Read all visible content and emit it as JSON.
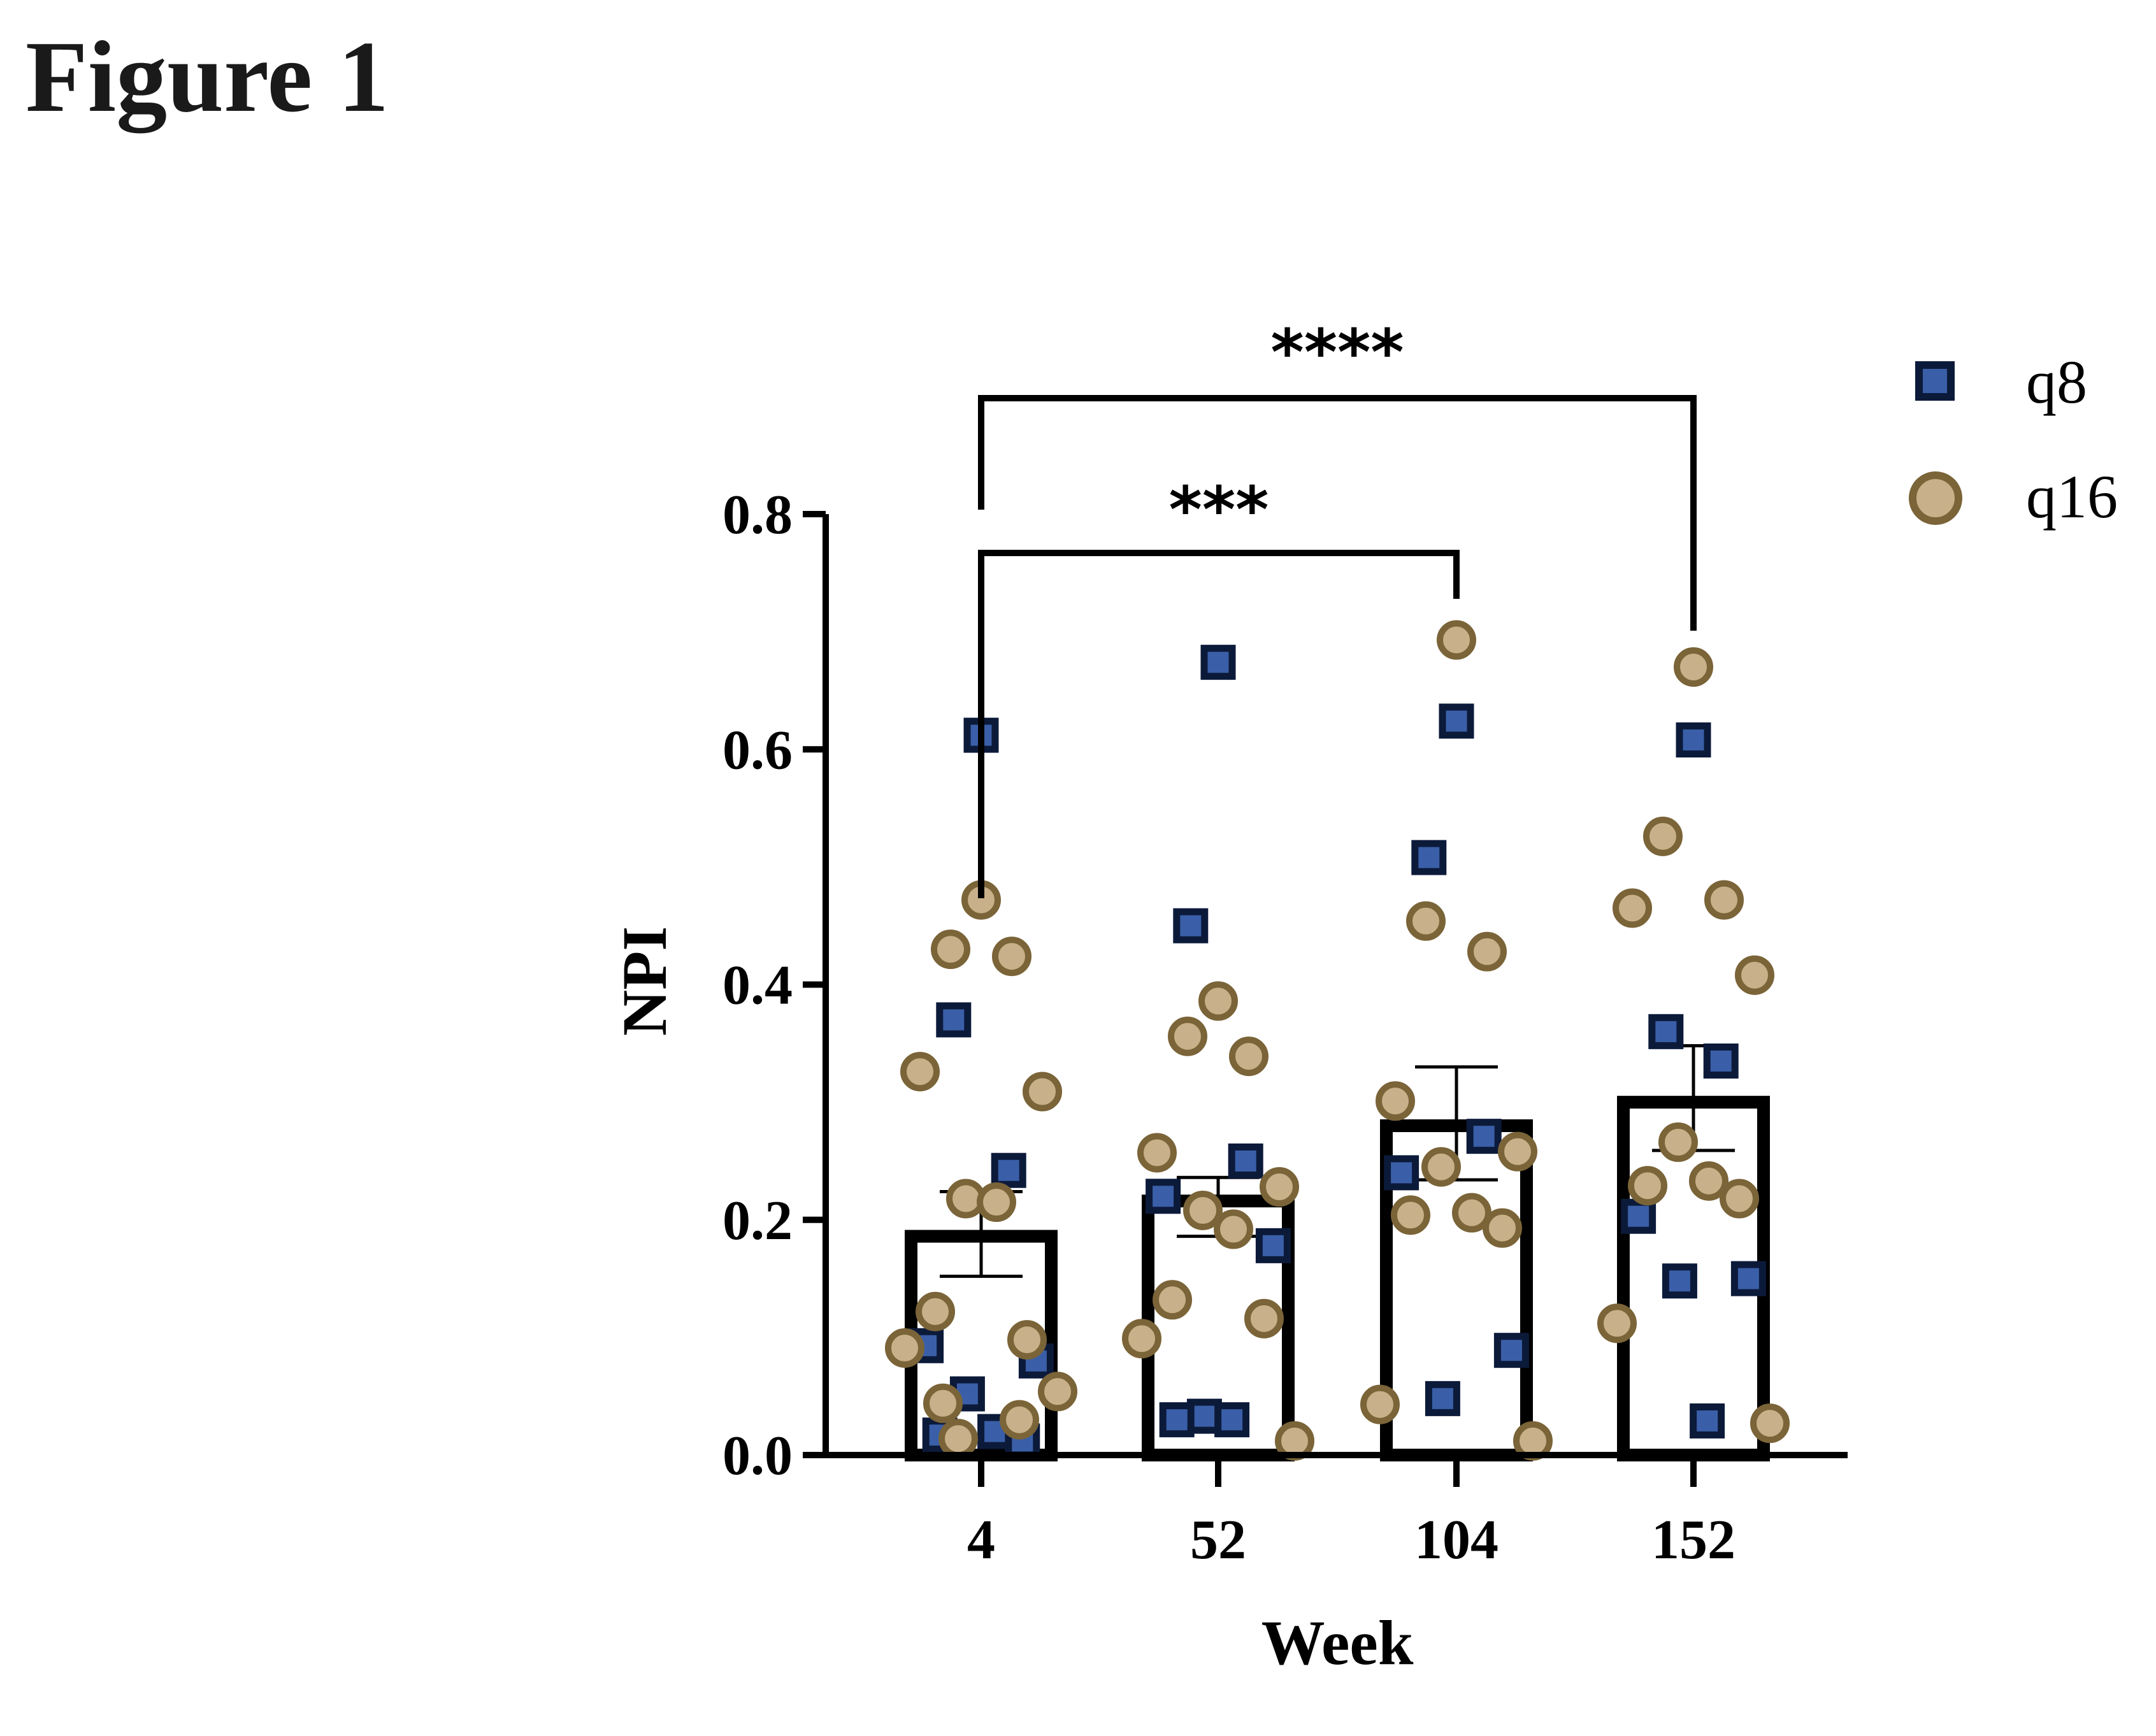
{
  "figure": {
    "heading": "Figure 1"
  },
  "colors": {
    "q8_fill": "#3a5fa8",
    "q8_stroke": "#0c1a3a",
    "q16_fill": "#c8b08a",
    "q16_stroke": "#7a6438",
    "axis": "#000000"
  },
  "chart_data": {
    "type": "bar",
    "title": "",
    "xlabel": "Week",
    "ylabel": "NPI",
    "categories": [
      "4",
      "52",
      "104",
      "152"
    ],
    "bar_means": [
      0.186,
      0.216,
      0.28,
      0.3
    ],
    "error_sem": [
      [
        0.152,
        0.224
      ],
      [
        0.186,
        0.236
      ],
      [
        0.234,
        0.33
      ],
      [
        0.259,
        0.348
      ]
    ],
    "ylim": [
      0,
      0.8
    ],
    "yticks": [
      "0.0",
      "0.2",
      "0.4",
      "0.6",
      "0.8"
    ],
    "grid": false,
    "legend_position": "top-right",
    "series": [
      {
        "name": "q8",
        "marker": "square",
        "points": [
          {
            "x": "4",
            "y": 0.612
          },
          {
            "x": "4",
            "y": 0.37
          },
          {
            "x": "4",
            "y": 0.242
          },
          {
            "x": "4",
            "y": 0.093
          },
          {
            "x": "4",
            "y": 0.08
          },
          {
            "x": "4",
            "y": 0.052
          },
          {
            "x": "4",
            "y": 0.02
          },
          {
            "x": "4",
            "y": 0.017
          },
          {
            "x": "4",
            "y": 0.012
          },
          {
            "x": "52",
            "y": 0.674
          },
          {
            "x": "52",
            "y": 0.45
          },
          {
            "x": "52",
            "y": 0.25
          },
          {
            "x": "52",
            "y": 0.22
          },
          {
            "x": "52",
            "y": 0.178
          },
          {
            "x": "52",
            "y": 0.033
          },
          {
            "x": "52",
            "y": 0.03
          },
          {
            "x": "52",
            "y": 0.03
          },
          {
            "x": "104",
            "y": 0.624
          },
          {
            "x": "104",
            "y": 0.508
          },
          {
            "x": "104",
            "y": 0.271
          },
          {
            "x": "104",
            "y": 0.24
          },
          {
            "x": "104",
            "y": 0.089
          },
          {
            "x": "104",
            "y": 0.048
          },
          {
            "x": "152",
            "y": 0.608
          },
          {
            "x": "152",
            "y": 0.36
          },
          {
            "x": "152",
            "y": 0.335
          },
          {
            "x": "152",
            "y": 0.203
          },
          {
            "x": "152",
            "y": 0.15
          },
          {
            "x": "152",
            "y": 0.148
          },
          {
            "x": "152",
            "y": 0.029
          }
        ]
      },
      {
        "name": "q16",
        "marker": "circle",
        "points": [
          {
            "x": "4",
            "y": 0.472
          },
          {
            "x": "4",
            "y": 0.43
          },
          {
            "x": "4",
            "y": 0.424
          },
          {
            "x": "4",
            "y": 0.326
          },
          {
            "x": "4",
            "y": 0.309
          },
          {
            "x": "4",
            "y": 0.218
          },
          {
            "x": "4",
            "y": 0.215
          },
          {
            "x": "4",
            "y": 0.122
          },
          {
            "x": "4",
            "y": 0.098
          },
          {
            "x": "4",
            "y": 0.091
          },
          {
            "x": "4",
            "y": 0.054
          },
          {
            "x": "4",
            "y": 0.044
          },
          {
            "x": "4",
            "y": 0.03
          },
          {
            "x": "4",
            "y": 0.014
          },
          {
            "x": "52",
            "y": 0.386
          },
          {
            "x": "52",
            "y": 0.356
          },
          {
            "x": "52",
            "y": 0.339
          },
          {
            "x": "52",
            "y": 0.257
          },
          {
            "x": "52",
            "y": 0.228
          },
          {
            "x": "52",
            "y": 0.208
          },
          {
            "x": "52",
            "y": 0.192
          },
          {
            "x": "52",
            "y": 0.132
          },
          {
            "x": "52",
            "y": 0.116
          },
          {
            "x": "52",
            "y": 0.099
          },
          {
            "x": "52",
            "y": 0.012
          },
          {
            "x": "104",
            "y": 0.693
          },
          {
            "x": "104",
            "y": 0.454
          },
          {
            "x": "104",
            "y": 0.428
          },
          {
            "x": "104",
            "y": 0.301
          },
          {
            "x": "104",
            "y": 0.258
          },
          {
            "x": "104",
            "y": 0.245
          },
          {
            "x": "104",
            "y": 0.206
          },
          {
            "x": "104",
            "y": 0.204
          },
          {
            "x": "104",
            "y": 0.193
          },
          {
            "x": "104",
            "y": 0.043
          },
          {
            "x": "104",
            "y": 0.012
          },
          {
            "x": "152",
            "y": 0.67
          },
          {
            "x": "152",
            "y": 0.526
          },
          {
            "x": "152",
            "y": 0.472
          },
          {
            "x": "152",
            "y": 0.465
          },
          {
            "x": "152",
            "y": 0.408
          },
          {
            "x": "152",
            "y": 0.266
          },
          {
            "x": "152",
            "y": 0.233
          },
          {
            "x": "152",
            "y": 0.229
          },
          {
            "x": "152",
            "y": 0.218
          },
          {
            "x": "152",
            "y": 0.112
          },
          {
            "x": "152",
            "y": 0.027
          }
        ]
      }
    ],
    "significance": [
      {
        "from": "4",
        "to": "104",
        "label": "***"
      },
      {
        "from": "4",
        "to": "152",
        "label": "****"
      }
    ]
  }
}
